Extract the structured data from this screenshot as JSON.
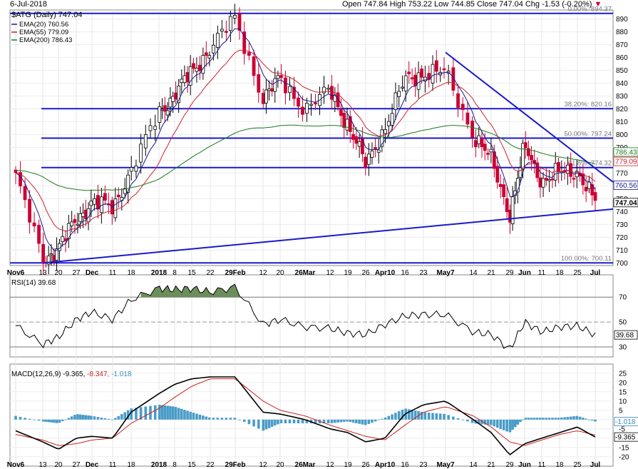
{
  "header": {
    "date": "6-Jul-2018",
    "ohlc": "Open 747.84  High 753.22  Low 744.85  Close 747.04  Chg -1.53 (-0.20%)",
    "down_arrow": "▼"
  },
  "chart_data": {
    "type": "candlestick",
    "symbol": "$ATG (Daily) 747.04",
    "ema_legend": [
      "EMA(20) 760.56",
      "EMA(55) 779.09",
      "EMA(200) 786.43"
    ],
    "x_ticks": [
      "Nov6",
      "13",
      "20",
      "27",
      "Dec",
      "11",
      "18",
      "2018",
      "8",
      "15",
      "22",
      "29Feb",
      "12",
      "20",
      "26Mar",
      "12",
      "19",
      "26",
      "Apr10",
      "16",
      "23",
      "May7",
      "14",
      "21",
      "29",
      "Jun",
      "11",
      "18",
      "25",
      "Jul"
    ],
    "y_ticks": [
      700,
      710,
      720,
      730,
      740,
      750,
      760,
      770,
      780,
      790,
      800,
      810,
      820,
      830,
      840,
      850,
      860,
      870,
      880,
      890
    ],
    "ylim": [
      698,
      897
    ],
    "fib_levels": [
      {
        "label": "0.00%: 894.37",
        "value": 894.37
      },
      {
        "label": "38.20%: 820.16",
        "value": 820.16
      },
      {
        "label": "50.00%: 797.24",
        "value": 797.24
      },
      {
        "label": "61.8%: 774.32",
        "value": 774.32
      },
      {
        "label": "100.00%: 700.11",
        "value": 700.11
      }
    ],
    "trendlines": [
      {
        "name": "support",
        "x": [
          "13",
          "Jul"
        ],
        "y": [
          700,
          742
        ]
      },
      {
        "name": "resistance",
        "x": [
          "May7",
          "Jul"
        ],
        "y": [
          864,
          763
        ]
      }
    ],
    "close_keypoints": [
      {
        "x": "Nov6",
        "y": 768
      },
      {
        "x": "13",
        "y": 702
      },
      {
        "x": "20",
        "y": 712
      },
      {
        "x": "27",
        "y": 733
      },
      {
        "x": "Dec",
        "y": 748
      },
      {
        "x": "11",
        "y": 742
      },
      {
        "x": "18",
        "y": 773
      },
      {
        "x": "2018",
        "y": 816
      },
      {
        "x": "8",
        "y": 832
      },
      {
        "x": "15",
        "y": 848
      },
      {
        "x": "22",
        "y": 868
      },
      {
        "x": "29Feb",
        "y": 890
      },
      {
        "x": "12",
        "y": 828
      },
      {
        "x": "20",
        "y": 843
      },
      {
        "x": "26Mar",
        "y": 820
      },
      {
        "x": "12",
        "y": 834
      },
      {
        "x": "19",
        "y": 808
      },
      {
        "x": "26",
        "y": 776
      },
      {
        "x": "Apr10",
        "y": 806
      },
      {
        "x": "16",
        "y": 842
      },
      {
        "x": "23",
        "y": 848
      },
      {
        "x": "May7",
        "y": 848
      },
      {
        "x": "14",
        "y": 800
      },
      {
        "x": "21",
        "y": 780
      },
      {
        "x": "29",
        "y": 738
      },
      {
        "x": "Jun",
        "y": 790
      },
      {
        "x": "11",
        "y": 764
      },
      {
        "x": "18",
        "y": 770
      },
      {
        "x": "25",
        "y": 772
      },
      {
        "x": "Jul",
        "y": 747
      }
    ],
    "price_labels": {
      "ema200": "786.43",
      "ema55": "779.09",
      "ema20": "760.56",
      "close": "747.04"
    },
    "colors": {
      "up": "#ffffff",
      "down": "#cc0033",
      "ema20": "#1a1a8c",
      "ema55": "#cc2233",
      "ema200": "#1a7a1a",
      "lines": "#1a1acc",
      "macd_hist": "#4a9cc8",
      "rsi_fill": "#6b8e5a"
    },
    "rsi": {
      "legend": "RSI(14) 39.68",
      "last": "39.68",
      "y_ticks": [
        30,
        50,
        70
      ],
      "ylim": [
        22,
        85
      ],
      "keypoints": [
        {
          "x": "Nov6",
          "y": 47
        },
        {
          "x": "13",
          "y": 32
        },
        {
          "x": "20",
          "y": 38
        },
        {
          "x": "27",
          "y": 52
        },
        {
          "x": "Dec",
          "y": 58
        },
        {
          "x": "11",
          "y": 52
        },
        {
          "x": "18",
          "y": 68
        },
        {
          "x": "2018",
          "y": 77
        },
        {
          "x": "8",
          "y": 76
        },
        {
          "x": "15",
          "y": 77
        },
        {
          "x": "22",
          "y": 74
        },
        {
          "x": "29Feb",
          "y": 78
        },
        {
          "x": "12",
          "y": 48
        },
        {
          "x": "20",
          "y": 52
        },
        {
          "x": "26Mar",
          "y": 46
        },
        {
          "x": "12",
          "y": 45
        },
        {
          "x": "19",
          "y": 41
        },
        {
          "x": "26",
          "y": 40
        },
        {
          "x": "Apr10",
          "y": 48
        },
        {
          "x": "16",
          "y": 55
        },
        {
          "x": "23",
          "y": 56
        },
        {
          "x": "May7",
          "y": 56
        },
        {
          "x": "14",
          "y": 42
        },
        {
          "x": "21",
          "y": 40
        },
        {
          "x": "29",
          "y": 28
        },
        {
          "x": "Jun",
          "y": 50
        },
        {
          "x": "11",
          "y": 42
        },
        {
          "x": "18",
          "y": 46
        },
        {
          "x": "25",
          "y": 47
        },
        {
          "x": "Jul",
          "y": 39.68
        }
      ]
    },
    "macd": {
      "legend_name": "MACD(12,26,9)",
      "legend_values": [
        "-9.365",
        "-8.347",
        "-1.018"
      ],
      "labels": {
        "hist": "-1.018",
        "macd": "-9.365"
      },
      "y_ticks": [
        -20,
        -15,
        -10,
        -5,
        0,
        5,
        10,
        15,
        20,
        25
      ],
      "ylim": [
        -22,
        28
      ],
      "macd_keypoints": [
        {
          "x": "Nov6",
          "y": -6
        },
        {
          "x": "13",
          "y": -12
        },
        {
          "x": "20",
          "y": -16
        },
        {
          "x": "27",
          "y": -10
        },
        {
          "x": "Dec",
          "y": -9
        },
        {
          "x": "11",
          "y": -10
        },
        {
          "x": "18",
          "y": 4
        },
        {
          "x": "2018",
          "y": 14
        },
        {
          "x": "8",
          "y": 19
        },
        {
          "x": "15",
          "y": 22
        },
        {
          "x": "22",
          "y": 23
        },
        {
          "x": "29Feb",
          "y": 23
        },
        {
          "x": "12",
          "y": 4
        },
        {
          "x": "20",
          "y": 3
        },
        {
          "x": "26Mar",
          "y": 0
        },
        {
          "x": "12",
          "y": -5
        },
        {
          "x": "19",
          "y": -7
        },
        {
          "x": "26",
          "y": -12
        },
        {
          "x": "Apr10",
          "y": -10
        },
        {
          "x": "16",
          "y": 3
        },
        {
          "x": "23",
          "y": 8
        },
        {
          "x": "May7",
          "y": 10
        },
        {
          "x": "14",
          "y": 0
        },
        {
          "x": "21",
          "y": -7
        },
        {
          "x": "29",
          "y": -19
        },
        {
          "x": "Jun",
          "y": -13
        },
        {
          "x": "11",
          "y": -10
        },
        {
          "x": "18",
          "y": -7
        },
        {
          "x": "25",
          "y": -4
        },
        {
          "x": "Jul",
          "y": -9.365
        }
      ],
      "signal_keypoints": [
        {
          "x": "Nov6",
          "y": -8
        },
        {
          "x": "13",
          "y": -11
        },
        {
          "x": "20",
          "y": -14
        },
        {
          "x": "27",
          "y": -13
        },
        {
          "x": "Dec",
          "y": -11
        },
        {
          "x": "11",
          "y": -10
        },
        {
          "x": "18",
          "y": -2
        },
        {
          "x": "2018",
          "y": 6
        },
        {
          "x": "8",
          "y": 12
        },
        {
          "x": "15",
          "y": 18
        },
        {
          "x": "22",
          "y": 22
        },
        {
          "x": "29Feb",
          "y": 22
        },
        {
          "x": "12",
          "y": 10
        },
        {
          "x": "20",
          "y": 5
        },
        {
          "x": "26Mar",
          "y": 2
        },
        {
          "x": "12",
          "y": -3
        },
        {
          "x": "19",
          "y": -6
        },
        {
          "x": "26",
          "y": -9
        },
        {
          "x": "Apr10",
          "y": -11
        },
        {
          "x": "16",
          "y": -3
        },
        {
          "x": "23",
          "y": 4
        },
        {
          "x": "May7",
          "y": 7
        },
        {
          "x": "14",
          "y": 2
        },
        {
          "x": "21",
          "y": -4
        },
        {
          "x": "29",
          "y": -12
        },
        {
          "x": "Jun",
          "y": -14
        },
        {
          "x": "11",
          "y": -11
        },
        {
          "x": "18",
          "y": -8
        },
        {
          "x": "25",
          "y": -6
        },
        {
          "x": "Jul",
          "y": -8.347
        }
      ]
    }
  }
}
